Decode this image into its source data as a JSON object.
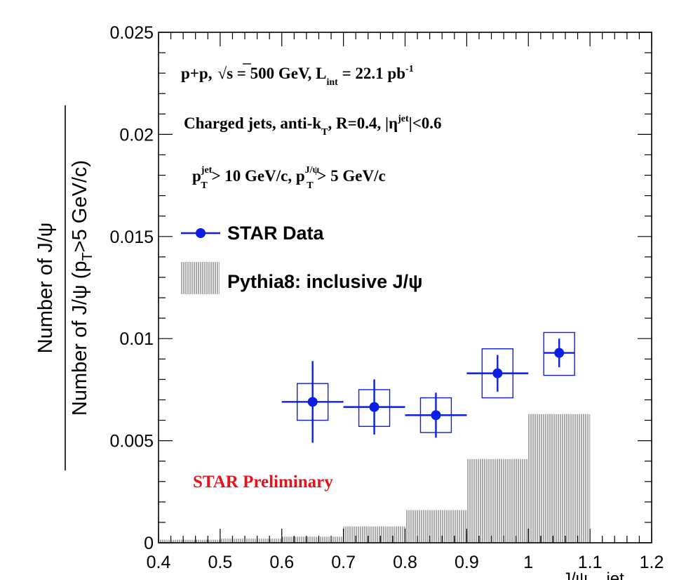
{
  "chart_data": {
    "type": "scatter",
    "xlim": [
      0.4,
      1.2
    ],
    "ylim": [
      0,
      0.025
    ],
    "x_ticks": [
      "0.4",
      "0.5",
      "0.6",
      "0.7",
      "0.8",
      "0.9",
      "1",
      "1.1",
      "1.2"
    ],
    "y_ticks": [
      "0",
      "0.005",
      "0.01",
      "0.015",
      "0.02",
      "0.025"
    ],
    "ylabel_numerator": "Number of J/ψ",
    "ylabel_denominator": "Number of J/ψ (p_T>5 GeV/c)",
    "xlabel_partial": "J/ψ    jet",
    "annotations": {
      "line1": {
        "a": "p+p,",
        "b": "s = 500 GeV, L",
        "c": "int",
        "d": " = 22.1 pb",
        "e": "-1"
      },
      "line2": {
        "a": "Charged jets, anti-k",
        "b": "T",
        "c": ", R=0.4, |η",
        "d": "jet",
        "e": "|<0.6"
      },
      "line3": {
        "a": "p",
        "b": "jet",
        "c": "T",
        "d": " > 10 GeV/c, p",
        "e": "J/ψ",
        "f": "T",
        "g": " > 5 GeV/c"
      },
      "preliminary": "STAR Preliminary"
    },
    "series": [
      {
        "name": "STAR Data",
        "color": "#0b1ee6",
        "points": [
          {
            "x": 0.65,
            "y": 0.0069,
            "stat_err": 0.002,
            "xerr": 0.05,
            "sys_x": 0.025,
            "sys_lo": 0.006,
            "sys_hi": 0.0078
          },
          {
            "x": 0.75,
            "y": 0.00665,
            "stat_err": 0.00135,
            "xerr": 0.05,
            "sys_x": 0.025,
            "sys_lo": 0.0057,
            "sys_hi": 0.0075
          },
          {
            "x": 0.85,
            "y": 0.00625,
            "stat_err": 0.0011,
            "xerr": 0.05,
            "sys_x": 0.025,
            "sys_lo": 0.0054,
            "sys_hi": 0.0071
          },
          {
            "x": 0.95,
            "y": 0.0083,
            "stat_err": 0.0009,
            "xerr": 0.05,
            "sys_x": 0.025,
            "sys_lo": 0.0071,
            "sys_hi": 0.0095
          },
          {
            "x": 1.05,
            "y": 0.0093,
            "stat_err": 0.0007,
            "xerr": 0.025,
            "sys_x": 0.025,
            "sys_lo": 0.0082,
            "sys_hi": 0.0103
          }
        ]
      },
      {
        "name": "Pythia8: inclusive J/ψ",
        "style": "hatched-histogram",
        "bin_edges": [
          0.4,
          0.5,
          0.6,
          0.7,
          0.8,
          0.9,
          1.0,
          1.1
        ],
        "values": [
          0.00015,
          0.0002,
          0.0003,
          0.0008,
          0.0016,
          0.0041,
          0.0063
        ]
      }
    ],
    "legend_position": "upper-left"
  }
}
